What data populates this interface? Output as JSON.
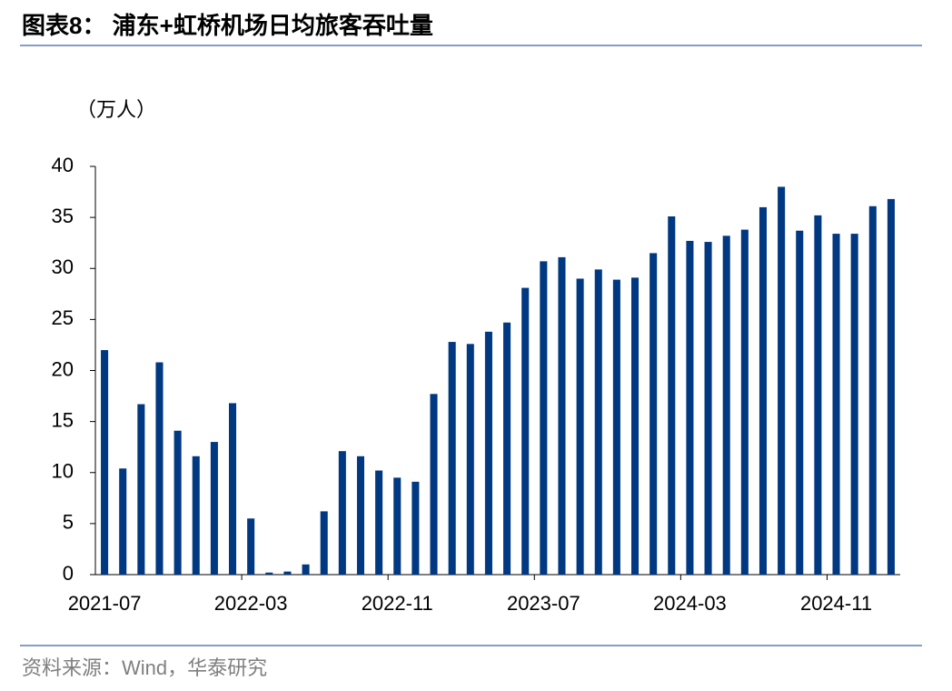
{
  "chart_data": {
    "type": "bar",
    "title": "图表8： 浦东+虹桥机场日均旅客吞吐量",
    "y_label": "（万人）",
    "source": "资料来源：Wind，华泰研究",
    "categories": [
      "2021-07",
      null,
      null,
      null,
      null,
      null,
      null,
      null,
      "2022-03",
      null,
      null,
      null,
      null,
      null,
      null,
      null,
      "2022-11",
      null,
      null,
      null,
      null,
      null,
      null,
      null,
      "2023-07",
      null,
      null,
      null,
      null,
      null,
      null,
      null,
      "2024-03",
      null,
      null,
      null,
      null,
      null,
      null,
      null,
      "2024-11",
      null,
      null,
      null
    ],
    "values": [
      22,
      10.4,
      16.7,
      20.8,
      14.1,
      11.6,
      13,
      16.8,
      5.5,
      0.2,
      0.3,
      1.0,
      6.2,
      12.1,
      11.6,
      10.2,
      9.5,
      9.1,
      17.7,
      22.8,
      22.6,
      23.8,
      24.7,
      28.1,
      30.7,
      31.1,
      29,
      29.9,
      28.9,
      29.1,
      31.5,
      35.1,
      32.7,
      32.6,
      33.2,
      33.8,
      36,
      38,
      33.7,
      35.2,
      33.4,
      33.4,
      36.1,
      36.8
    ],
    "color": "#003882",
    "ylim": [
      0,
      40
    ],
    "yticks": [
      0,
      5,
      10,
      15,
      20,
      25,
      30,
      35,
      40
    ],
    "grid": false
  }
}
